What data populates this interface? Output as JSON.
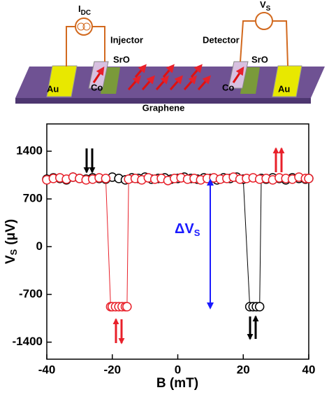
{
  "schematic": {
    "current_source": {
      "main": "I",
      "sub": "DC"
    },
    "voltmeter": {
      "main": "V",
      "sub": "S"
    },
    "injector": "Injector",
    "detector": "Detector",
    "layers": {
      "sro_left": "SrO",
      "sro_right": "SrO",
      "co_left": "Co",
      "co_right": "Co",
      "au_left": "Au",
      "au_right": "Au",
      "channel": "Graphene"
    }
  },
  "chart_data": {
    "type": "scatter",
    "marker": "open-circle",
    "xlabel": "B (mT)",
    "ylabel": {
      "main": "V",
      "sub": "S",
      "unit": "(μV)"
    },
    "annotation": {
      "main": "ΔV",
      "sub": "S"
    },
    "xlim": [
      -40,
      40
    ],
    "xticks": [
      -40,
      -20,
      0,
      20,
      40
    ],
    "ylim": [
      -1650,
      1800
    ],
    "yticks": [
      -1400,
      -700,
      0,
      700,
      1400
    ],
    "series": [
      {
        "color": "#000000",
        "x": [
          -40,
          -38,
          -36,
          -34,
          -32,
          -30,
          -28,
          -26,
          -24,
          -22,
          -20,
          -18,
          -16,
          -14,
          -12,
          -10,
          -8,
          -6,
          -4,
          -2,
          0,
          2,
          4,
          6,
          8,
          10,
          12,
          14,
          16,
          18,
          20,
          22,
          23,
          24,
          25,
          25.5,
          27,
          29,
          31,
          33,
          35,
          37,
          39,
          40
        ],
        "values": [
          990,
          1010,
          1000,
          980,
          1020,
          1000,
          990,
          1010,
          1000,
          990,
          1020,
          1000,
          980,
          1010,
          1000,
          1020,
          990,
          1000,
          1010,
          990,
          1000,
          1020,
          1000,
          990,
          1010,
          1000,
          980,
          1010,
          1000,
          1020,
          990,
          -880,
          -880,
          -880,
          -880,
          1000,
          990,
          1010,
          1000,
          980,
          1010,
          1000,
          990,
          1000
        ]
      },
      {
        "color": "#e8202a",
        "x": [
          -40,
          -38,
          -36,
          -34,
          -32,
          -30,
          -28,
          -26,
          -24,
          -22,
          -20.5,
          -20,
          -19,
          -18,
          -17,
          -16,
          -15.5,
          -15,
          -13,
          -11,
          -9,
          -7,
          -5,
          -3,
          -1,
          1,
          3,
          5,
          7,
          9,
          11,
          13,
          15,
          17,
          19,
          21,
          23,
          25,
          27,
          29,
          31,
          33,
          35,
          37,
          39,
          40
        ],
        "values": [
          980,
          1000,
          1010,
          990,
          1020,
          1000,
          980,
          990,
          1010,
          1000,
          -880,
          -880,
          -880,
          -880,
          -880,
          -880,
          -880,
          990,
          1000,
          980,
          1010,
          990,
          1000,
          970,
          1000,
          1010,
          990,
          1000,
          980,
          1000,
          1010,
          990,
          1000,
          1020,
          990,
          1000,
          1010,
          990,
          1000,
          980,
          1010,
          1000,
          990,
          1020,
          1000,
          1000
        ]
      }
    ]
  }
}
